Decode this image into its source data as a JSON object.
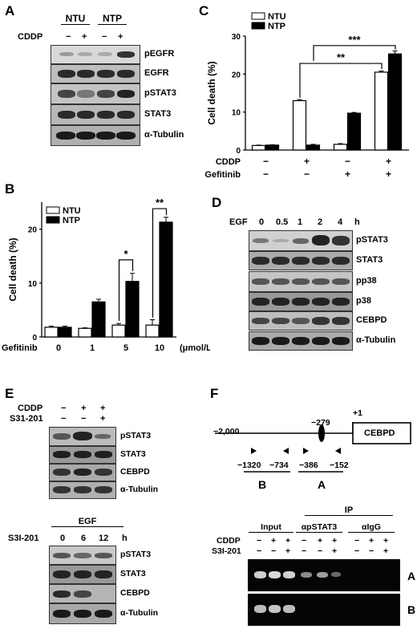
{
  "panels": [
    "A",
    "B",
    "C",
    "D",
    "E",
    "F"
  ],
  "panelA": {
    "groups": [
      "NTU",
      "NTP"
    ],
    "treatment_label": "CDDP",
    "treatment_marks": [
      "−",
      "+",
      "−",
      "+"
    ],
    "blots": [
      "pEGFR",
      "EGFR",
      "pSTAT3",
      "STAT3",
      "α-Tubulin"
    ]
  },
  "panelC": {
    "chart_data": {
      "type": "bar",
      "categories": [
        "1",
        "2",
        "3",
        "4"
      ],
      "series": [
        {
          "name": "NTU",
          "values": [
            1.2,
            13.0,
            1.5,
            20.5
          ]
        },
        {
          "name": "NTP",
          "values": [
            1.3,
            1.3,
            9.7,
            25.3
          ]
        }
      ],
      "errors": {
        "NTU": [
          0.1,
          0.3,
          0.2,
          0.3
        ],
        "NTP": [
          0.1,
          0.2,
          0.2,
          0.8
        ]
      },
      "ylabel": "Cell death (%)",
      "ylim": [
        0,
        30
      ],
      "yticks": [
        "0",
        "10",
        "20",
        "30"
      ],
      "row_labels": [
        "CDDP",
        "Gefitinib"
      ],
      "row_marks": [
        [
          "−",
          "+",
          "−",
          "+"
        ],
        [
          "−",
          "−",
          "+",
          "+"
        ]
      ],
      "significance": [
        "**",
        "***"
      ],
      "legend": [
        "NTU",
        "NTP"
      ]
    }
  },
  "panelB": {
    "chart_data": {
      "type": "bar",
      "categories": [
        "0",
        "1",
        "5",
        "10"
      ],
      "series": [
        {
          "name": "NTU",
          "values": [
            1.8,
            1.6,
            2.2,
            2.2
          ]
        },
        {
          "name": "NTP",
          "values": [
            1.8,
            6.5,
            10.3,
            21.3
          ]
        }
      ],
      "errors": {
        "NTU": [
          0.2,
          0.1,
          0.3,
          1.0
        ],
        "NTP": [
          0.2,
          0.5,
          1.5,
          0.9
        ]
      },
      "ylabel": "Cell death (%)",
      "ylim": [
        0,
        25
      ],
      "yticks": [
        "0",
        "10",
        "20"
      ],
      "xlabel_left": "Gefitinib",
      "unit": "(μmol/L)",
      "significance": [
        "*",
        "**"
      ],
      "legend": [
        "NTU",
        "NTP"
      ]
    }
  },
  "panelD": {
    "treatment_label": "EGF",
    "timepoints": [
      "0",
      "0.5",
      "1",
      "2",
      "4"
    ],
    "unit": "h",
    "blots": [
      "pSTAT3",
      "STAT3",
      "pp38",
      "p38",
      "CEBPD",
      "α-Tubulin"
    ]
  },
  "panelE": {
    "top": {
      "rows": [
        "CDDP",
        "S31-201"
      ],
      "marks": [
        [
          "−",
          "+",
          "+"
        ],
        [
          "−",
          "−",
          "+"
        ]
      ],
      "blots": [
        "pSTAT3",
        "STAT3",
        "CEBPD",
        "α-Tubulin"
      ]
    },
    "bottom": {
      "treatment_label": "EGF",
      "row_label": "S3I-201",
      "timepoints": [
        "0",
        "6",
        "12"
      ],
      "unit": "h",
      "blots": [
        "pSTAT3",
        "STAT3",
        "CEBPD",
        "α-Tubulin"
      ]
    }
  },
  "panelF": {
    "map": {
      "start": "−2,000",
      "site": "−279",
      "tss": "+1",
      "gene": "CEBPD",
      "primersB": [
        "−1320",
        "−734"
      ],
      "primersA": [
        "−386",
        "−152"
      ],
      "regionB": "B",
      "regionA": "A"
    },
    "gel": {
      "ip_label": "IP",
      "groups": [
        "Input",
        "αpSTAT3",
        "αIgG"
      ],
      "rows": [
        "CDDP",
        "S3I-201"
      ],
      "marks": [
        [
          "−",
          "+",
          "+",
          "−",
          "+",
          "+",
          "−",
          "+",
          "+"
        ],
        [
          "−",
          "−",
          "+",
          "−",
          "−",
          "+",
          "−",
          "−",
          "+"
        ]
      ],
      "lanes_labels": [
        "A",
        "B"
      ]
    }
  }
}
